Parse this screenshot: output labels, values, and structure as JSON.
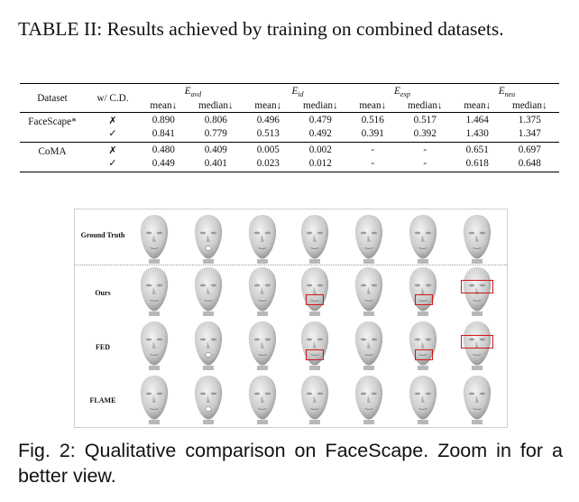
{
  "table": {
    "caption": "TABLE II: Results achieved by training on combined datasets.",
    "col_dataset": "Dataset",
    "col_cd": "w/ C.D.",
    "groups": [
      {
        "sym": "E",
        "sub": "avd"
      },
      {
        "sym": "E",
        "sub": "id"
      },
      {
        "sym": "E",
        "sub": "exp"
      },
      {
        "sym": "E",
        "sub": "neu"
      }
    ],
    "sub_mean": "mean↓",
    "sub_median": "median↓",
    "rows": [
      {
        "dataset": "FaceScape*",
        "mark": "✗",
        "cells": [
          {
            "v": "0.890",
            "b": false
          },
          {
            "v": "0.806",
            "b": false
          },
          {
            "v": "0.496",
            "b": true
          },
          {
            "v": "0.479",
            "b": true
          },
          {
            "v": "0.516",
            "b": false
          },
          {
            "v": "0.517",
            "b": false
          },
          {
            "v": "1.464",
            "b": false
          },
          {
            "v": "1.375",
            "b": false
          }
        ]
      },
      {
        "dataset": "",
        "mark": "✓",
        "cells": [
          {
            "v": "0.841",
            "b": true
          },
          {
            "v": "0.779",
            "b": true
          },
          {
            "v": "0.513",
            "b": false
          },
          {
            "v": "0.492",
            "b": false
          },
          {
            "v": "0.391",
            "b": true
          },
          {
            "v": "0.392",
            "b": true
          },
          {
            "v": "1.430",
            "b": true
          },
          {
            "v": "1.347",
            "b": true
          }
        ]
      },
      {
        "dataset": "CoMA",
        "mark": "✗",
        "cells": [
          {
            "v": "0.480",
            "b": false
          },
          {
            "v": "0.409",
            "b": false
          },
          {
            "v": "0.005",
            "b": true
          },
          {
            "v": "0.002",
            "b": true
          },
          {
            "v": "-",
            "b": false
          },
          {
            "v": "-",
            "b": false
          },
          {
            "v": "0.651",
            "b": false
          },
          {
            "v": "0.697",
            "b": false
          }
        ]
      },
      {
        "dataset": "",
        "mark": "✓",
        "cells": [
          {
            "v": "0.449",
            "b": true
          },
          {
            "v": "0.401",
            "b": true
          },
          {
            "v": "0.023",
            "b": false
          },
          {
            "v": "0.012",
            "b": false
          },
          {
            "v": "-",
            "b": false
          },
          {
            "v": "-",
            "b": false
          },
          {
            "v": "0.618",
            "b": true
          },
          {
            "v": "0.648",
            "b": true
          }
        ]
      }
    ]
  },
  "figure": {
    "row_labels": [
      "Ground Truth",
      "Ours",
      "FED",
      "FLAME"
    ],
    "caption": "Fig. 2: Qualitative comparison on FaceScape. Zoom in for a better view."
  },
  "colors": {
    "highlight_box": "#d01818",
    "mesh_light": "#f2f2f2",
    "mesh_dark": "#8a8a8a"
  }
}
